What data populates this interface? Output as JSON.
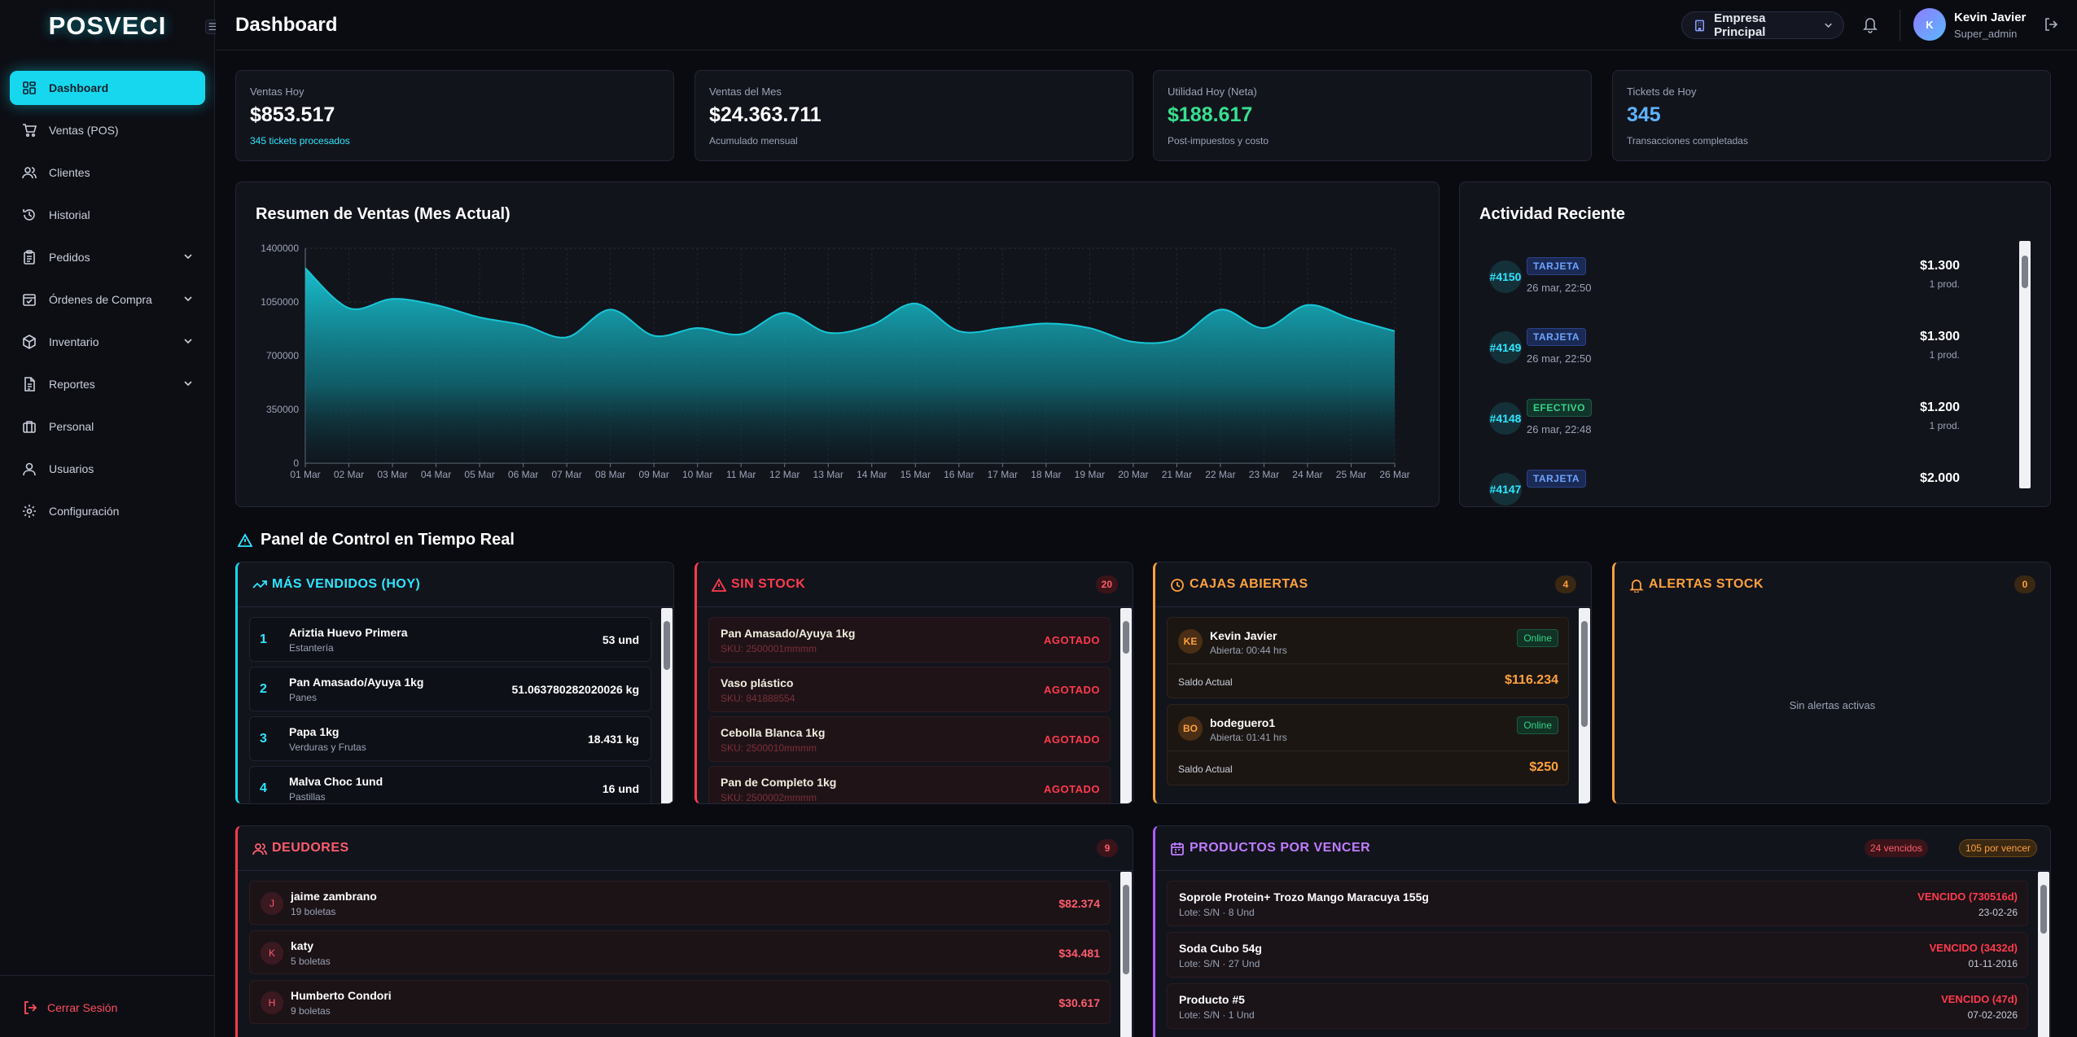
{
  "app": {
    "logo": "POSVECI",
    "collapse_icon": "menu-icon"
  },
  "sidebar": {
    "items": [
      {
        "label": "Dashboard",
        "icon": "dashboard-icon",
        "active": true
      },
      {
        "label": "Ventas (POS)",
        "icon": "cart-icon"
      },
      {
        "label": "Clientes",
        "icon": "users-icon"
      },
      {
        "label": "Historial",
        "icon": "history-icon"
      },
      {
        "label": "Pedidos",
        "icon": "clipboard-icon",
        "expandable": true
      },
      {
        "label": "Órdenes de Compra",
        "icon": "purchase-icon",
        "expandable": true
      },
      {
        "label": "Inventario",
        "icon": "box-icon",
        "expandable": true
      },
      {
        "label": "Reportes",
        "icon": "report-icon",
        "expandable": true
      },
      {
        "label": "Personal",
        "icon": "briefcase-icon"
      },
      {
        "label": "Usuarios",
        "icon": "user-icon"
      },
      {
        "label": "Configuración",
        "icon": "gear-icon"
      }
    ],
    "logout_label": "Cerrar Sesión"
  },
  "header": {
    "title": "Dashboard",
    "company": "Empresa Principal",
    "user_initial": "K",
    "user_name": "Kevin Javier",
    "user_role": "Super_admin"
  },
  "stats": [
    {
      "label": "Ventas Hoy",
      "value": "$853.517",
      "sub": "345 tickets procesados",
      "value_color": "#ffffff",
      "sub_color": "#2ee6ff"
    },
    {
      "label": "Ventas del Mes",
      "value": "$24.363.711",
      "sub": "Acumulado mensual",
      "value_color": "#ffffff",
      "sub_color": "#9aa3b5"
    },
    {
      "label": "Utilidad Hoy (Neta)",
      "value": "$188.617",
      "sub": "Post-impuestos y costo",
      "value_color": "#37e08f",
      "sub_color": "#9aa3b5"
    },
    {
      "label": "Tickets de Hoy",
      "value": "345",
      "sub": "Transacciones completadas",
      "value_color": "#5fb4ff",
      "sub_color": "#9aa3b5"
    }
  ],
  "sales_chart": {
    "title": "Resumen de Ventas (Mes Actual)"
  },
  "chart_data": {
    "type": "area",
    "title": "Resumen de Ventas (Mes Actual)",
    "x": [
      "01 Mar",
      "02 Mar",
      "03 Mar",
      "04 Mar",
      "05 Mar",
      "06 Mar",
      "07 Mar",
      "08 Mar",
      "09 Mar",
      "10 Mar",
      "11 Mar",
      "12 Mar",
      "13 Mar",
      "14 Mar",
      "15 Mar",
      "16 Mar",
      "17 Mar",
      "18 Mar",
      "19 Mar",
      "20 Mar",
      "21 Mar",
      "22 Mar",
      "23 Mar",
      "24 Mar",
      "25 Mar",
      "26 Mar"
    ],
    "values": [
      1270000,
      1010000,
      1070000,
      1030000,
      950000,
      900000,
      820000,
      1000000,
      830000,
      880000,
      840000,
      980000,
      850000,
      900000,
      1040000,
      860000,
      880000,
      910000,
      880000,
      790000,
      810000,
      1000000,
      880000,
      1030000,
      940000,
      860000
    ],
    "yticks": [
      0,
      350000,
      700000,
      1050000,
      1400000
    ],
    "ylim": [
      0,
      1400000
    ],
    "grid": true,
    "color": "#17c6d6"
  },
  "activity": {
    "title": "Actividad Reciente",
    "items": [
      {
        "id": "#4150",
        "method": "TARJETA",
        "kind": "card",
        "date": "26 mar, 22:50",
        "amount": "$1.300",
        "products": "1 prod."
      },
      {
        "id": "#4149",
        "method": "TARJETA",
        "kind": "card",
        "date": "26 mar, 22:50",
        "amount": "$1.300",
        "products": "1 prod."
      },
      {
        "id": "#4148",
        "method": "EFECTIVO",
        "kind": "cash",
        "date": "26 mar, 22:48",
        "amount": "$1.200",
        "products": "1 prod."
      },
      {
        "id": "#4147",
        "method": "TARJETA",
        "kind": "card",
        "date": "",
        "amount": "$2.000",
        "products": ""
      }
    ]
  },
  "control_panel": {
    "title": "Panel de Control en Tiempo Real"
  },
  "top_sellers": {
    "title": "MÁS VENDIDOS (HOY)",
    "items": [
      {
        "rank": "1",
        "name": "Ariztia Huevo Primera",
        "category": "Estantería",
        "qty": "53 und"
      },
      {
        "rank": "2",
        "name": "Pan Amasado/Ayuya 1kg",
        "category": "Panes",
        "qty": "51.063780282020026 kg"
      },
      {
        "rank": "3",
        "name": "Papa 1kg",
        "category": "Verduras y Frutas",
        "qty": "18.431 kg"
      },
      {
        "rank": "4",
        "name": "Malva Choc 1und",
        "category": "Pastillas",
        "qty": "16 und"
      }
    ]
  },
  "out_of_stock": {
    "title": "SIN STOCK",
    "count": "20",
    "items": [
      {
        "name": "Pan Amasado/Ayuya 1kg",
        "sku": "SKU: 2500001mmmm",
        "status": "AGOTADO"
      },
      {
        "name": "Vaso plástico",
        "sku": "SKU: 841888554",
        "status": "AGOTADO"
      },
      {
        "name": "Cebolla Blanca 1kg",
        "sku": "SKU: 2500010mmmm",
        "status": "AGOTADO"
      },
      {
        "name": "Pan de Completo 1kg",
        "sku": "SKU: 2500002mmmm",
        "status": "AGOTADO"
      }
    ]
  },
  "open_boxes": {
    "title": "CAJAS ABIERTAS",
    "count": "4",
    "items": [
      {
        "initials": "KE",
        "name": "Kevin Javier",
        "opened": "Abierta: 00:44 hrs",
        "status": "Online",
        "balance_label": "Saldo Actual",
        "balance": "$116.234"
      },
      {
        "initials": "BO",
        "name": "bodeguero1",
        "opened": "Abierta: 01:41 hrs",
        "status": "Online",
        "balance_label": "Saldo Actual",
        "balance": "$250"
      }
    ]
  },
  "stock_alerts": {
    "title": "ALERTAS STOCK",
    "count": "0",
    "empty": "Sin alertas activas"
  },
  "debtors": {
    "title": "DEUDORES",
    "count": "9",
    "items": [
      {
        "initial": "J",
        "name": "jaime zambrano",
        "sub": "19 boletas",
        "amount": "$82.374"
      },
      {
        "initial": "K",
        "name": "katy",
        "sub": "5 boletas",
        "amount": "$34.481"
      },
      {
        "initial": "H",
        "name": "Humberto Condori",
        "sub": "9 boletas",
        "amount": "$30.617"
      }
    ]
  },
  "expiring": {
    "title": "PRODUCTOS POR VENCER",
    "expired_badge": "24 vencidos",
    "soon_badge": "105 por vencer",
    "items": [
      {
        "name": "Soprole Protein+ Trozo Mango Maracuya 155g",
        "lot": "Lote: S/N · 8 Und",
        "status": "VENCIDO (730516d)",
        "date": "23-02-26"
      },
      {
        "name": "Soda Cubo 54g",
        "lot": "Lote: S/N · 27 Und",
        "status": "VENCIDO (3432d)",
        "date": "01-11-2016"
      },
      {
        "name": "Producto #5",
        "lot": "Lote: S/N · 1 Und",
        "status": "VENCIDO (47d)",
        "date": "07-02-2026"
      }
    ]
  },
  "colors": {
    "accent": "#17d7ef",
    "danger": "#ff3b4d",
    "warning": "#ffa13d",
    "purple": "#b05cff",
    "success": "#37d48a"
  }
}
